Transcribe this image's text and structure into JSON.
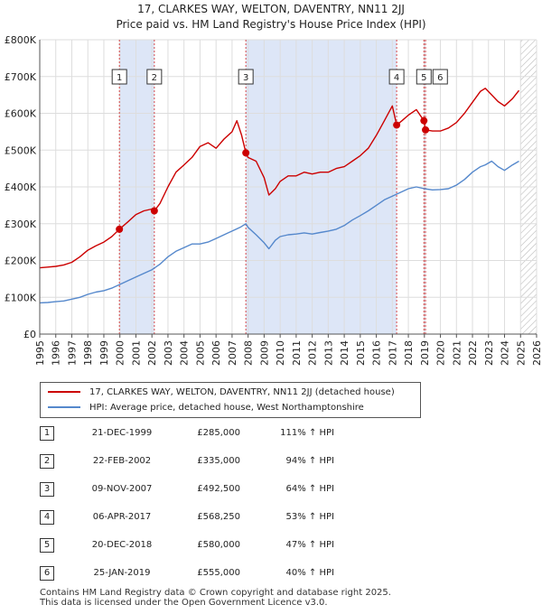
{
  "chart_data": {
    "type": "line",
    "title": "17, CLARKES WAY, WELTON, DAVENTRY, NN11 2JJ",
    "subtitle": "Price paid vs. HM Land Registry's House Price Index (HPI)",
    "xlabel": "",
    "ylabel": "",
    "xlim": [
      1995,
      2026
    ],
    "ylim": [
      0,
      800000
    ],
    "x_ticks": [
      "1995",
      "1996",
      "1997",
      "1998",
      "1999",
      "2000",
      "2001",
      "2002",
      "2003",
      "2004",
      "2005",
      "2006",
      "2007",
      "2008",
      "2009",
      "2010",
      "2011",
      "2012",
      "2013",
      "2014",
      "2015",
      "2016",
      "2017",
      "2018",
      "2019",
      "2020",
      "2021",
      "2022",
      "2023",
      "2024",
      "2025",
      "2026"
    ],
    "y_ticks": [
      {
        "value": 0,
        "label": "£0"
      },
      {
        "value": 100000,
        "label": "£100K"
      },
      {
        "value": 200000,
        "label": "£200K"
      },
      {
        "value": 300000,
        "label": "£300K"
      },
      {
        "value": 400000,
        "label": "£400K"
      },
      {
        "value": 500000,
        "label": "£500K"
      },
      {
        "value": 600000,
        "label": "£600K"
      },
      {
        "value": 700000,
        "label": "£700K"
      },
      {
        "value": 800000,
        "label": "£800K"
      }
    ],
    "shaded_periods": [
      [
        1999.97,
        2002.15
      ],
      [
        2007.86,
        2017.27
      ],
      [
        2018.97,
        2019.07
      ]
    ],
    "forecast_from": 2025.0,
    "series": [
      {
        "name": "17, CLARKES WAY, WELTON, DAVENTRY, NN11 2JJ (detached house)",
        "color": "#cc0000",
        "x": [
          1995.0,
          1995.5,
          1996.0,
          1996.5,
          1997.0,
          1997.5,
          1998.0,
          1998.5,
          1999.0,
          1999.5,
          1999.97,
          2000.5,
          2001.0,
          2001.5,
          2002.0,
          2002.15,
          2002.5,
          2003.0,
          2003.5,
          2004.0,
          2004.5,
          2005.0,
          2005.5,
          2006.0,
          2006.5,
          2007.0,
          2007.3,
          2007.6,
          2007.86,
          2008.0,
          2008.5,
          2009.0,
          2009.3,
          2009.7,
          2010.0,
          2010.5,
          2011.0,
          2011.5,
          2012.0,
          2012.5,
          2013.0,
          2013.5,
          2014.0,
          2014.5,
          2015.0,
          2015.5,
          2016.0,
          2016.5,
          2017.0,
          2017.27,
          2017.6,
          2018.0,
          2018.5,
          2018.97,
          2019.07,
          2019.5,
          2020.0,
          2020.5,
          2021.0,
          2021.5,
          2022.0,
          2022.5,
          2022.8,
          2023.2,
          2023.6,
          2024.0,
          2024.5,
          2024.9
        ],
        "y": [
          180000,
          182000,
          184000,
          188000,
          195000,
          210000,
          228000,
          240000,
          250000,
          265000,
          285000,
          305000,
          325000,
          335000,
          340000,
          335000,
          355000,
          400000,
          440000,
          460000,
          480000,
          510000,
          520000,
          505000,
          530000,
          550000,
          580000,
          540000,
          492500,
          480000,
          470000,
          425000,
          378000,
          395000,
          415000,
          430000,
          430000,
          440000,
          435000,
          440000,
          440000,
          450000,
          455000,
          470000,
          485000,
          505000,
          540000,
          580000,
          620000,
          568250,
          580000,
          595000,
          610000,
          580000,
          555000,
          552000,
          552000,
          560000,
          575000,
          600000,
          630000,
          660000,
          668000,
          650000,
          632000,
          620000,
          640000,
          662000
        ]
      },
      {
        "name": "HPI: Average price, detached house, West Northamptonshire",
        "color": "#5588cc",
        "x": [
          1995.0,
          1995.5,
          1996.0,
          1996.5,
          1997.0,
          1997.5,
          1998.0,
          1998.5,
          1999.0,
          1999.5,
          2000.0,
          2000.5,
          2001.0,
          2001.5,
          2002.0,
          2002.5,
          2003.0,
          2003.5,
          2004.0,
          2004.5,
          2005.0,
          2005.5,
          2006.0,
          2006.5,
          2007.0,
          2007.5,
          2007.86,
          2008.0,
          2008.5,
          2009.0,
          2009.3,
          2009.7,
          2010.0,
          2010.5,
          2011.0,
          2011.5,
          2012.0,
          2012.5,
          2013.0,
          2013.5,
          2014.0,
          2014.5,
          2015.0,
          2015.5,
          2016.0,
          2016.5,
          2017.0,
          2017.5,
          2018.0,
          2018.5,
          2019.0,
          2019.5,
          2020.0,
          2020.5,
          2021.0,
          2021.5,
          2022.0,
          2022.5,
          2022.8,
          2023.2,
          2023.6,
          2024.0,
          2024.5,
          2024.9
        ],
        "y": [
          85000,
          86000,
          88000,
          90000,
          95000,
          100000,
          108000,
          114000,
          118000,
          125000,
          135000,
          145000,
          155000,
          165000,
          175000,
          190000,
          210000,
          225000,
          235000,
          245000,
          245000,
          250000,
          260000,
          270000,
          280000,
          290000,
          300000,
          290000,
          270000,
          248000,
          232000,
          255000,
          265000,
          270000,
          272000,
          275000,
          272000,
          276000,
          280000,
          285000,
          295000,
          310000,
          322000,
          335000,
          350000,
          365000,
          375000,
          385000,
          395000,
          400000,
          395000,
          392000,
          393000,
          395000,
          405000,
          420000,
          440000,
          455000,
          460000,
          470000,
          455000,
          445000,
          460000,
          470000
        ]
      }
    ],
    "markers": [
      {
        "label": "1",
        "x": 1999.97,
        "y": 285000
      },
      {
        "label": "2",
        "x": 2002.15,
        "y": 335000
      },
      {
        "label": "3",
        "x": 2007.86,
        "y": 492500
      },
      {
        "label": "4",
        "x": 2017.27,
        "y": 568250
      },
      {
        "label": "5",
        "x": 2018.97,
        "y": 580000
      },
      {
        "label": "6",
        "x": 2019.07,
        "y": 555000
      }
    ]
  },
  "legend": {
    "items": [
      {
        "label": "17, CLARKES WAY, WELTON, DAVENTRY, NN11 2JJ (detached house)",
        "color": "#cc0000"
      },
      {
        "label": "HPI: Average price, detached house, West Northamptonshire",
        "color": "#5588cc"
      }
    ]
  },
  "sales": [
    {
      "num": "1",
      "date": "21-DEC-1999",
      "price": "£285,000",
      "hpi": "111% ↑ HPI"
    },
    {
      "num": "2",
      "date": "22-FEB-2002",
      "price": "£335,000",
      "hpi": "94% ↑ HPI"
    },
    {
      "num": "3",
      "date": "09-NOV-2007",
      "price": "£492,500",
      "hpi": "64% ↑ HPI"
    },
    {
      "num": "4",
      "date": "06-APR-2017",
      "price": "£568,250",
      "hpi": "53% ↑ HPI"
    },
    {
      "num": "5",
      "date": "20-DEC-2018",
      "price": "£580,000",
      "hpi": "47% ↑ HPI"
    },
    {
      "num": "6",
      "date": "25-JAN-2019",
      "price": "£555,000",
      "hpi": "40% ↑ HPI"
    }
  ],
  "footer": {
    "line1": "Contains HM Land Registry data © Crown copyright and database right 2025.",
    "line2": "This data is licensed under the Open Government Licence v3.0."
  }
}
